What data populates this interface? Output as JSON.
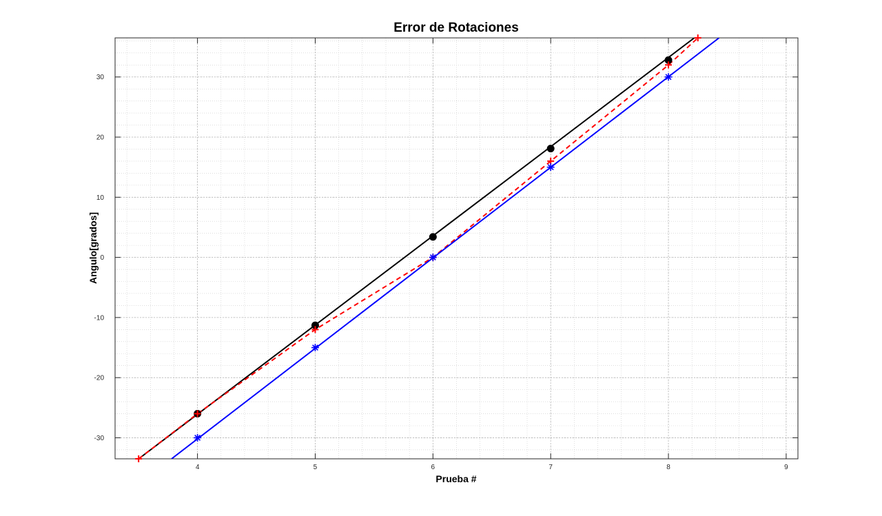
{
  "chart_data": {
    "type": "line",
    "title": "Error de Rotaciones",
    "xlabel": "Prueba #",
    "ylabel": "Angulo[grados]",
    "xlim": [
      3.3,
      9.1
    ],
    "ylim": [
      -33.5,
      36.5
    ],
    "xticks": [
      4,
      5,
      6,
      7,
      8,
      9
    ],
    "yticks": [
      -30,
      -20,
      -10,
      0,
      10,
      20,
      30
    ],
    "grid": "major+minor",
    "series": [
      {
        "color": "#000000",
        "line_style": "solid",
        "marker": "filled-circle",
        "points": {
          "x": [
            4,
            5,
            6,
            7,
            8
          ],
          "y": [
            -26,
            -11.3,
            3.4,
            18.1,
            32.8
          ]
        },
        "fit_line": {
          "x": [
            3.5,
            8.22
          ],
          "y": [
            -33.5,
            36.5
          ]
        }
      },
      {
        "color": "#ff0000",
        "line_style": "dashed",
        "marker": "plus",
        "points": {
          "x": [
            3.5,
            4,
            5,
            6,
            7,
            8,
            8.25
          ],
          "y": [
            -33.5,
            -26,
            -12,
            0,
            16,
            32,
            36.5
          ]
        }
      },
      {
        "color": "#0000ff",
        "line_style": "solid",
        "marker": "asterisk",
        "points": {
          "x": [
            4,
            5,
            6,
            7,
            8
          ],
          "y": [
            -30,
            -15,
            0,
            15,
            30
          ]
        },
        "fit_line": {
          "x": [
            3.78,
            8.43
          ],
          "y": [
            -33.5,
            36.5
          ]
        }
      }
    ]
  }
}
